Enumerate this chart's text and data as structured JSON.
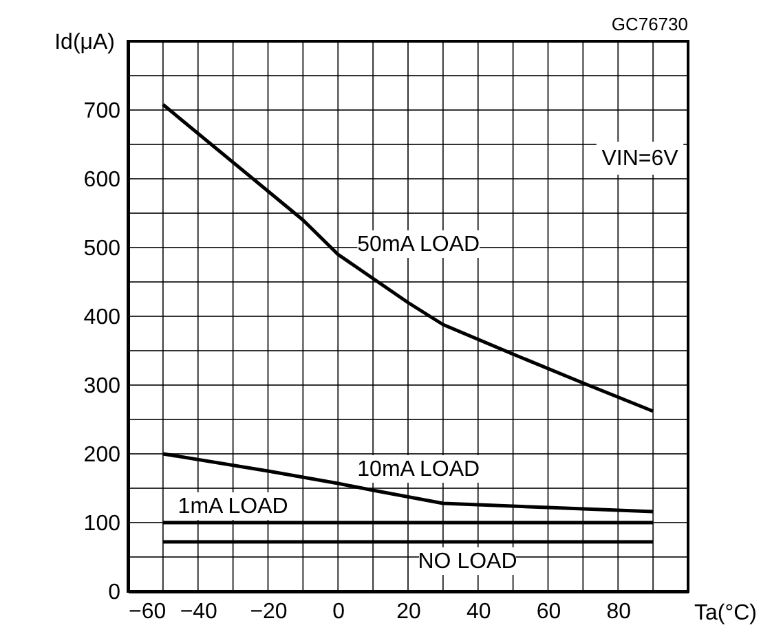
{
  "chart_data": {
    "type": "line",
    "xlabel": "Ta(°C)",
    "ylabel": "Id(μA)",
    "annotations": [
      "GC76730",
      "VIN=6V"
    ],
    "xlim": [
      -60,
      100
    ],
    "ylim": [
      0,
      800
    ],
    "xticks": [
      -60,
      {
        "value": -50,
        "label": null
      },
      -40,
      {
        "value": -30,
        "label": null
      },
      -20,
      {
        "value": -10,
        "label": null
      },
      0,
      {
        "value": 10,
        "label": null
      },
      20,
      {
        "value": 30,
        "label": null
      },
      40,
      {
        "value": 50,
        "label": null
      },
      60,
      {
        "value": 70,
        "label": null
      },
      80,
      {
        "value": 90,
        "label": null
      },
      {
        "value": 100,
        "label": null
      }
    ],
    "yticks": [
      0,
      {
        "value": 50,
        "label": null
      },
      100,
      {
        "value": 150,
        "label": null
      },
      200,
      {
        "value": 250,
        "label": null
      },
      300,
      {
        "value": 350,
        "label": null
      },
      400,
      {
        "value": 450,
        "label": null
      },
      500,
      {
        "value": 550,
        "label": null
      },
      600,
      {
        "value": 650,
        "label": null
      },
      700,
      {
        "value": 750,
        "label": null
      },
      {
        "value": 800,
        "label": null
      }
    ],
    "grid": true,
    "legend": false,
    "marker": "none",
    "line_style": "solid",
    "series": [
      {
        "name": "50mA LOAD",
        "color": "#000000",
        "x": [
          -50,
          -10,
          0,
          10,
          20,
          30,
          50,
          70,
          90
        ],
        "values": [
          708,
          540,
          490,
          455,
          420,
          388,
          345,
          303,
          262
        ]
      },
      {
        "name": "10mA LOAD",
        "color": "#000000",
        "x": [
          -50,
          -20,
          0,
          10,
          30,
          60,
          90
        ],
        "values": [
          200,
          175,
          157,
          147,
          128,
          122,
          116
        ]
      },
      {
        "name": "1mA LOAD",
        "color": "#000000",
        "x": [
          -50,
          90
        ],
        "values": [
          100,
          100
        ]
      },
      {
        "name": "NO LOAD",
        "color": "#000000",
        "x": [
          -50,
          90
        ],
        "values": [
          72,
          72
        ]
      }
    ]
  }
}
